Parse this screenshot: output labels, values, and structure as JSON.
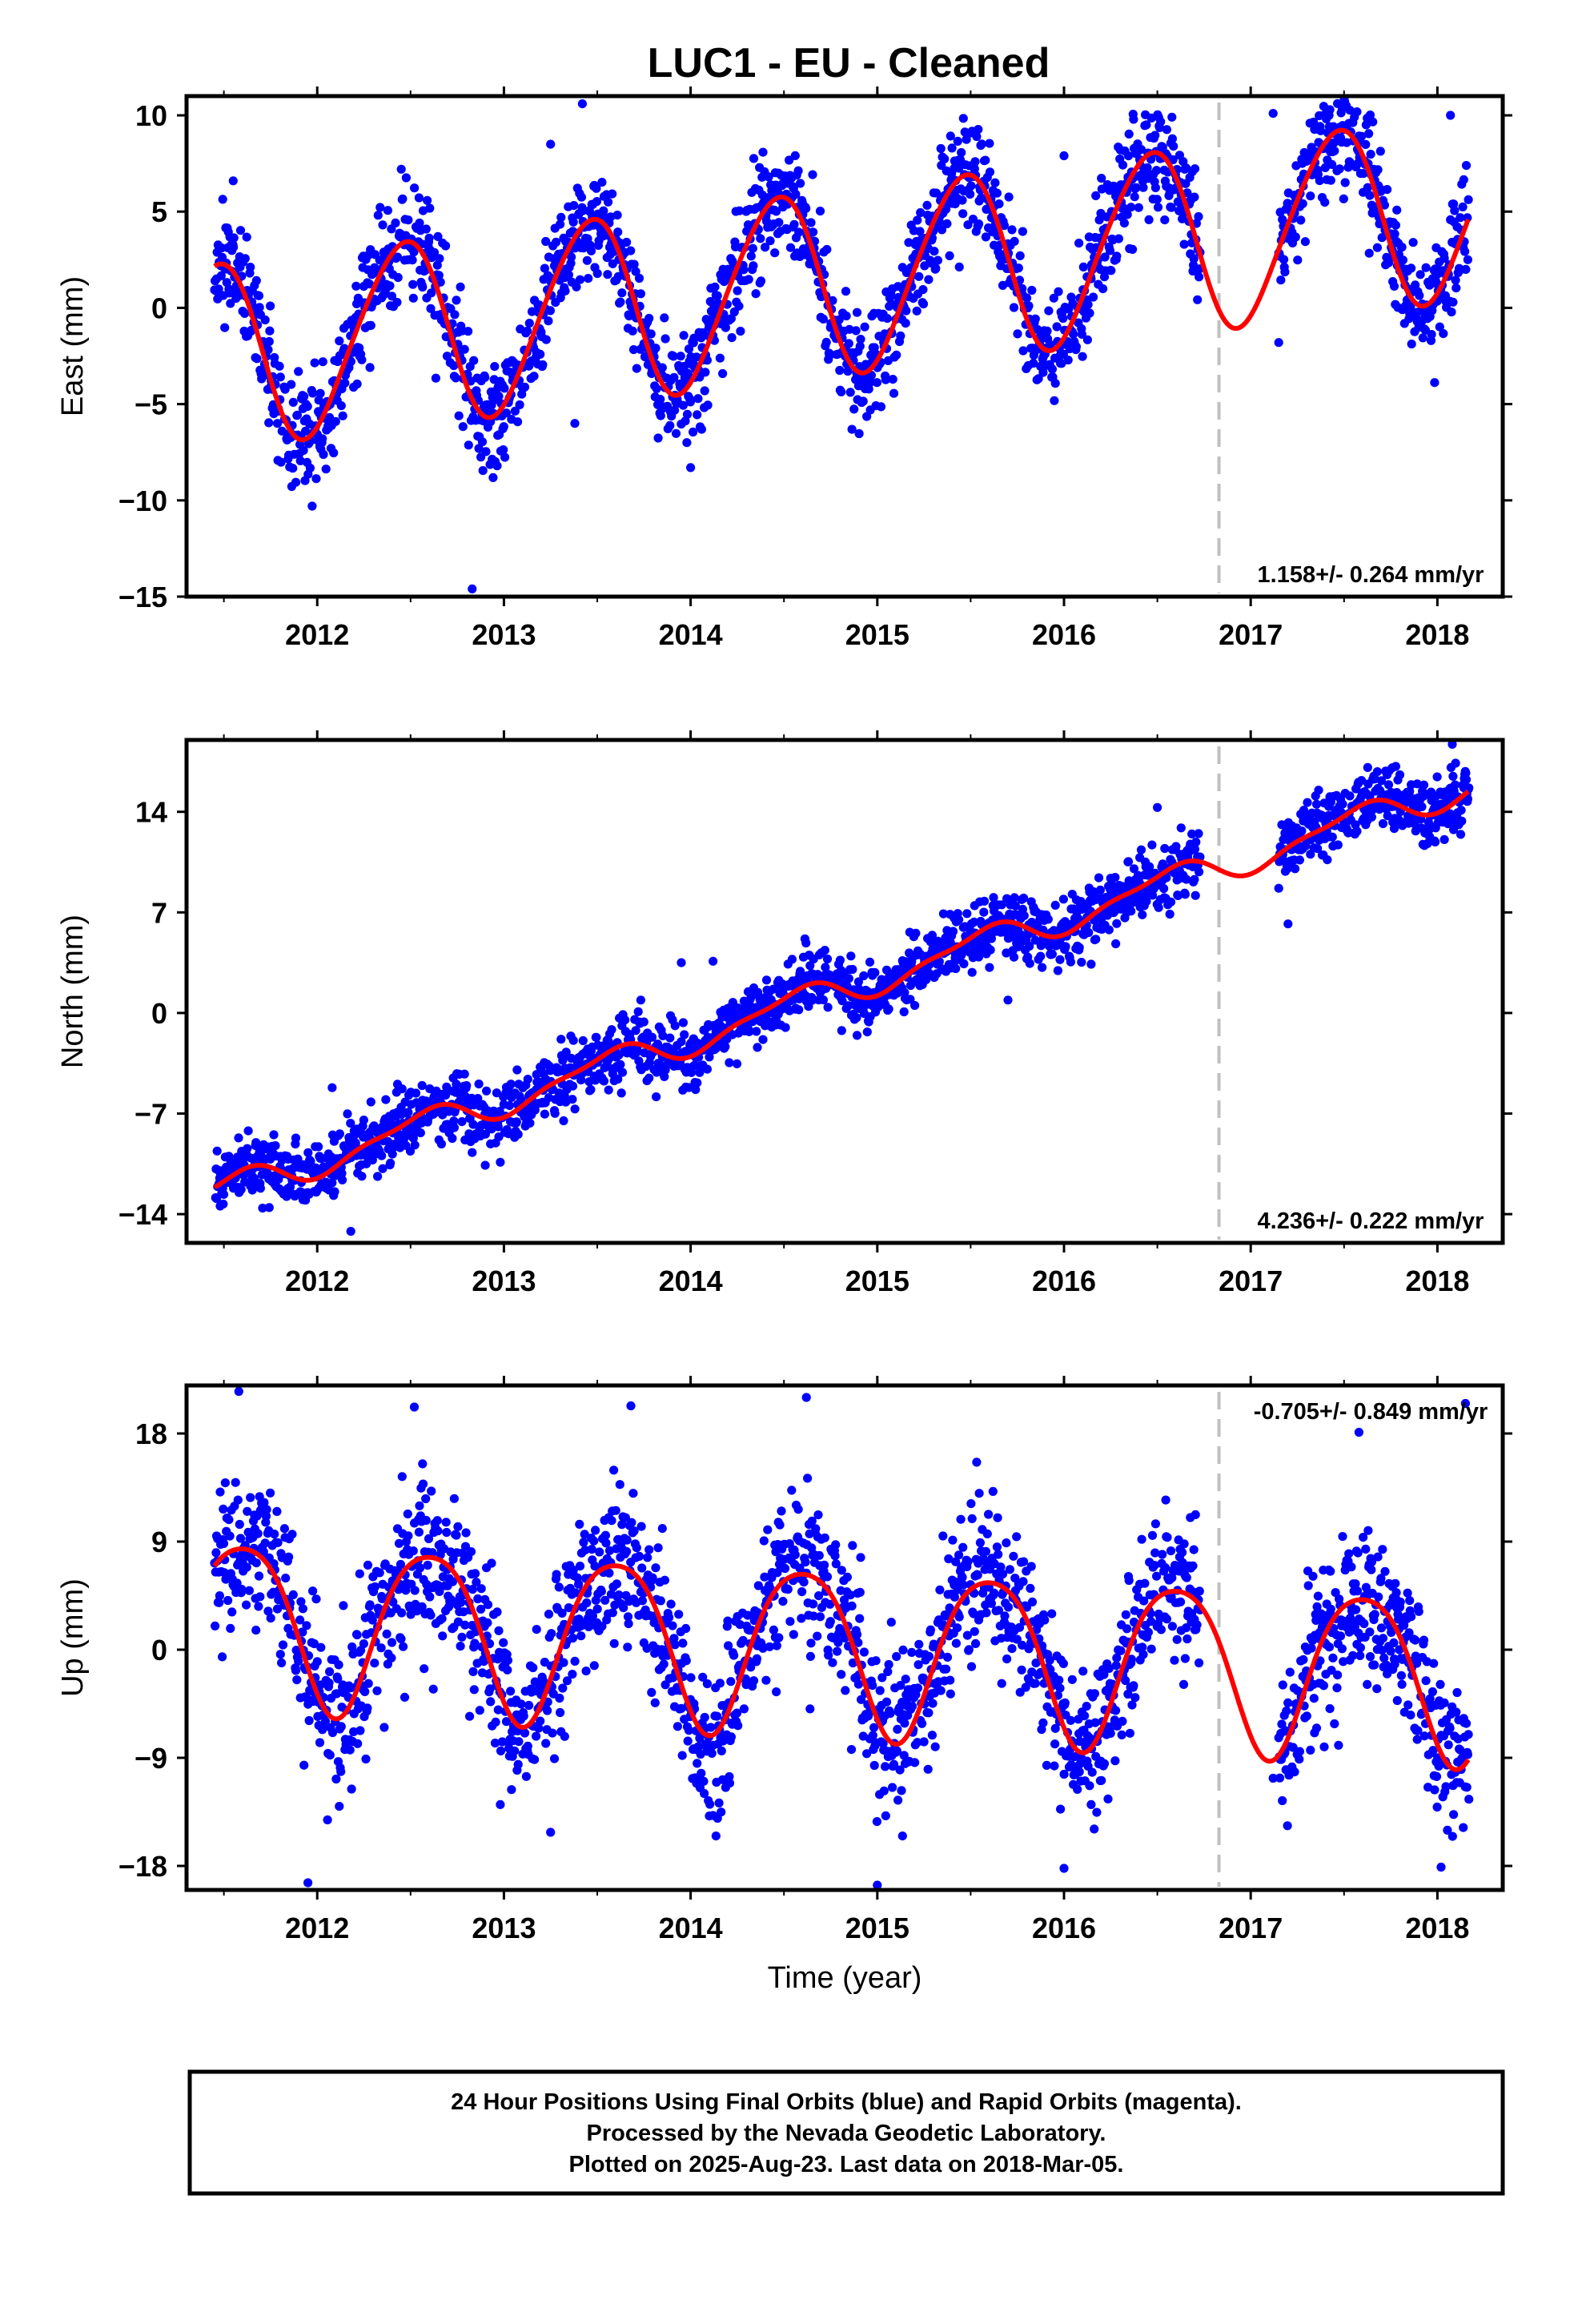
{
  "title": "LUC1  - EU - Cleaned",
  "footer": {
    "line1": "24 Hour Positions Using Final Orbits (blue) and Rapid Orbits (magenta).",
    "line2": "Processed by the Nevada Geodetic Laboratory.",
    "line3": "Plotted on 2025-Aug-23. Last data on 2018-Mar-05."
  },
  "colors": {
    "points": "#0000ff",
    "fit": "#ff0000",
    "marker_line": "#c0c0c0"
  },
  "chart_data": [
    {
      "type": "scatter",
      "title": "LUC1  - EU - Cleaned",
      "ylabel": "East (mm)",
      "xlabel": "",
      "xlim": [
        2011.3,
        2018.35
      ],
      "ylim": [
        -15,
        11
      ],
      "x_ticks": [
        "2012",
        "2013",
        "2014",
        "2015",
        "2016",
        "2017",
        "2018"
      ],
      "y_ticks": [
        "10",
        "5",
        "0",
        "−5",
        "−10",
        "−15"
      ],
      "y_tick_values": [
        10,
        5,
        0,
        -5,
        -10,
        -15
      ],
      "rate_text": "1.158+/- 0.264 mm/yr",
      "marker_x": 2016.83,
      "data_start": 2011.45,
      "data_end": 2018.17,
      "gaps": [
        [
          2016.73,
          2017.15
        ]
      ],
      "model": {
        "offset": -2.45,
        "rate": 1.158,
        "ref_year": 2011.45,
        "annual_amp": 4.75,
        "annual_peak": 0.45,
        "semi_amp": 0.45,
        "semi_peak": 0.1
      },
      "noise_sd": 1.4,
      "outliers": [
        {
          "x": 2011.55,
          "y": 6.6
        },
        {
          "x": 2012.45,
          "y": 7.2
        },
        {
          "x": 2012.83,
          "y": -14.6
        },
        {
          "x": 2013.25,
          "y": 8.5
        },
        {
          "x": 2013.42,
          "y": 10.6
        },
        {
          "x": 2013.38,
          "y": -6.0
        },
        {
          "x": 2014.47,
          "y": 7.0
        },
        {
          "x": 2015.4,
          "y": 8.3
        },
        {
          "x": 2016.0,
          "y": 7.9
        },
        {
          "x": 2017.12,
          "y": 10.1
        },
        {
          "x": 2017.42,
          "y": 10.0
        },
        {
          "x": 2018.07,
          "y": 10.0
        },
        {
          "x": 2014.0,
          "y": -8.3
        },
        {
          "x": 2017.15,
          "y": -1.8
        }
      ],
      "seed": 11
    },
    {
      "type": "scatter",
      "ylabel": "North (mm)",
      "xlabel": "",
      "xlim": [
        2011.3,
        2018.35
      ],
      "ylim": [
        -16,
        19
      ],
      "x_ticks": [
        "2012",
        "2013",
        "2014",
        "2015",
        "2016",
        "2017",
        "2018"
      ],
      "y_ticks": [
        "14",
        "7",
        "0",
        "−7",
        "−14"
      ],
      "y_tick_values": [
        14,
        7,
        0,
        -7,
        -14
      ],
      "rate_text": "4.236+/- 0.222 mm/yr",
      "marker_x": 2016.83,
      "data_start": 2011.45,
      "data_end": 2018.17,
      "gaps": [
        [
          2016.73,
          2017.15
        ]
      ],
      "model": {
        "offset": -12.6,
        "rate": 4.236,
        "ref_year": 2011.45,
        "annual_amp": 1.0,
        "annual_peak": 0.55,
        "semi_amp": 0.35,
        "semi_peak": 0.2
      },
      "noise_sd": 1.1,
      "outliers": [
        {
          "x": 2012.18,
          "y": -15.2
        },
        {
          "x": 2012.08,
          "y": -5.2
        },
        {
          "x": 2013.95,
          "y": 3.5
        },
        {
          "x": 2014.12,
          "y": 3.6
        },
        {
          "x": 2016.5,
          "y": 14.3
        },
        {
          "x": 2017.2,
          "y": 6.2
        },
        {
          "x": 2018.08,
          "y": 18.7
        },
        {
          "x": 2012.9,
          "y": -10.6
        },
        {
          "x": 2015.7,
          "y": 0.9
        }
      ],
      "seed": 23
    },
    {
      "type": "scatter",
      "ylabel": "Up (mm)",
      "xlabel": "Time (year)",
      "xlim": [
        2011.3,
        2018.35
      ],
      "ylim": [
        -20,
        22
      ],
      "x_ticks": [
        "2012",
        "2013",
        "2014",
        "2015",
        "2016",
        "2017",
        "2018"
      ],
      "y_ticks": [
        "18",
        "9",
        "0",
        "−9",
        "−18"
      ],
      "y_tick_values": [
        18,
        9,
        0,
        -9,
        -18
      ],
      "rate_text": "-0.705+/- 0.849 mm/yr",
      "marker_x": 2016.83,
      "data_start": 2011.45,
      "data_end": 2018.17,
      "gaps": [
        [
          2016.73,
          2017.15
        ]
      ],
      "model": {
        "offset": 2.6,
        "rate": -0.705,
        "ref_year": 2011.45,
        "annual_amp": 6.9,
        "annual_peak": 0.6,
        "semi_amp": 1.0,
        "semi_peak": 0.35
      },
      "noise_sd": 3.3,
      "outliers": [
        {
          "x": 2011.58,
          "y": 21.5
        },
        {
          "x": 2011.95,
          "y": -19.4
        },
        {
          "x": 2012.52,
          "y": 20.2
        },
        {
          "x": 2013.68,
          "y": 20.3
        },
        {
          "x": 2014.62,
          "y": 21.0
        },
        {
          "x": 2015.0,
          "y": -19.6
        },
        {
          "x": 2017.58,
          "y": 18.1
        },
        {
          "x": 2018.02,
          "y": -18.1
        },
        {
          "x": 2016.0,
          "y": -18.2
        },
        {
          "x": 2018.15,
          "y": 20.5
        },
        {
          "x": 2013.25,
          "y": -15.2
        },
        {
          "x": 2014.12,
          "y": -13.8
        },
        {
          "x": 2017.12,
          "y": -10.7
        }
      ],
      "seed": 37
    }
  ]
}
